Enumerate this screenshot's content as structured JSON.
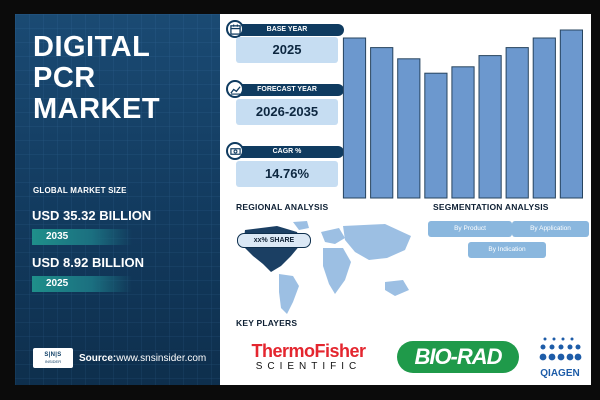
{
  "report": {
    "title": "DIGITAL PCR MARKET",
    "global_market_size_label": "GLOBAL MARKET SIZE",
    "market_values": [
      {
        "amount": "USD 35.32 BILLION",
        "year": "2035"
      },
      {
        "amount": "USD 8.92 BILLION",
        "year": "2025"
      }
    ],
    "source_prefix": "Source:",
    "source_url": "www.snsinsider.com",
    "logo_text": "S|N|S",
    "logo_sub": "INSIDER"
  },
  "cards": [
    {
      "label": "BASE YEAR",
      "value": "2025",
      "icon": "calendar-icon"
    },
    {
      "label": "FORECAST YEAR",
      "value": "2026-2035",
      "icon": "forecast-chart-icon"
    },
    {
      "label": "CAGR %",
      "value": "14.76%",
      "icon": "cagr-money-icon"
    }
  ],
  "chart_data": {
    "type": "bar",
    "categories": [
      "",
      "",
      "",
      "",
      "",
      "",
      "",
      "",
      ""
    ],
    "values": [
      100,
      94,
      87,
      78,
      82,
      89,
      94,
      100,
      105
    ],
    "title": "",
    "xlabel": "",
    "ylabel": "",
    "ylim": [
      0,
      110
    ],
    "color": "#6c98ce",
    "edge_color": "#27445f"
  },
  "regional": {
    "title": "REGIONAL ANALYSIS",
    "share_label": "xx% SHARE",
    "highlight_color": "#1b3f63",
    "map_color": "#9cbfe3"
  },
  "segmentation": {
    "title": "SEGMENTATION ANALYSIS",
    "buttons": [
      "By Product",
      "By Application",
      "By Indication"
    ]
  },
  "key_players": {
    "title": "KEY PLAYERS",
    "thermo_top": "ThermoFisher",
    "thermo_bottom": "SCIENTIFIC",
    "biorad": "BIO-RAD",
    "qiagen": "QIAGEN"
  },
  "colors": {
    "panel": "#123a5e",
    "accent_teal": "#1f8f8a",
    "card_value_bg": "#c6ddf2",
    "card_label_bg": "#0f3b60"
  }
}
